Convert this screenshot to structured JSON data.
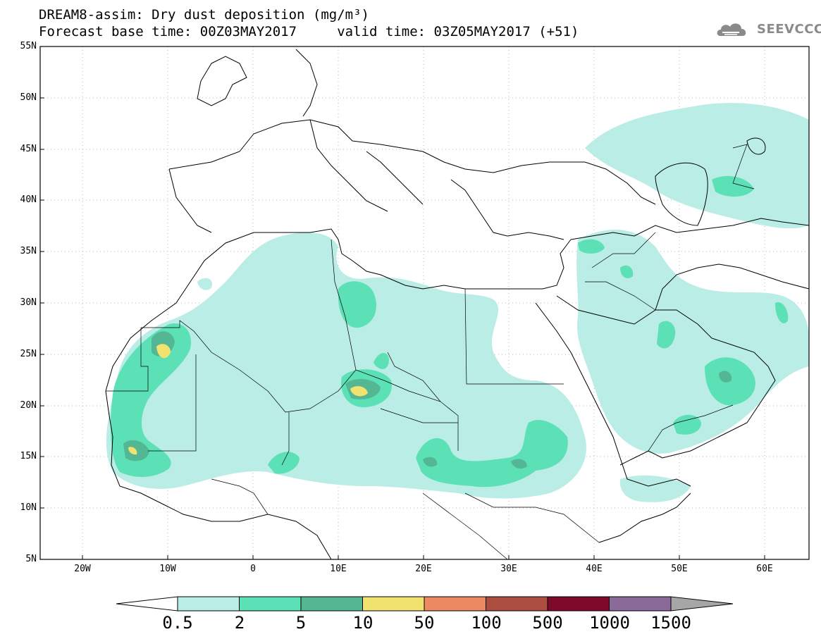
{
  "title": {
    "line1": "DREAM8-assim: Dry dust deposition (mg/m³)",
    "line2": "Forecast base time: 00Z03MAY2017     valid time: 03Z05MAY2017 (+51)"
  },
  "logo": {
    "text": "SEEVCCC",
    "icon": "cloud-icon"
  },
  "map": {
    "projection": "lat-lon",
    "lat_range": [
      5,
      55
    ],
    "lon_range": [
      -25,
      65
    ],
    "lat_ticks": [
      "55N",
      "50N",
      "45N",
      "40N",
      "35N",
      "30N",
      "25N",
      "20N",
      "15N",
      "10N",
      "5N"
    ],
    "lon_ticks": [
      "20W",
      "10W",
      "0",
      "10E",
      "20E",
      "30E",
      "40E",
      "50E",
      "60E"
    ],
    "grid": "dotted"
  },
  "legend": {
    "levels": [
      "0.5",
      "2",
      "5",
      "10",
      "50",
      "100",
      "500",
      "1000",
      "1500"
    ],
    "colors": [
      "#b9ede6",
      "#5ce0b5",
      "#54b794",
      "#f2e26f",
      "#ec8a63",
      "#ab4d3f",
      "#7d0a2b",
      "#8a6a99",
      "#a6a6a6"
    ],
    "underflow_color": "#ffffff"
  }
}
